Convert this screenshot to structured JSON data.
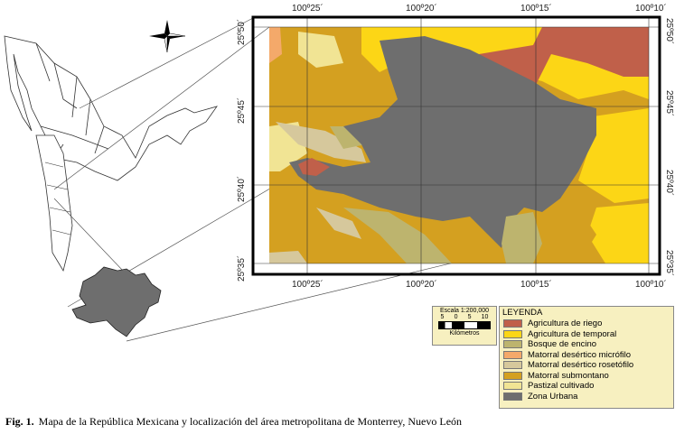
{
  "map": {
    "longitude_labels": [
      "100º25´",
      "100º20´",
      "100º15´",
      "100º10´"
    ],
    "latitude_labels": [
      "25º50´",
      "25º45´",
      "25º40´",
      "25º35´"
    ],
    "north_arrow": "compass-rose-icon"
  },
  "scale": {
    "title": "Escala 1:200,000",
    "ticks": [
      "5",
      "0",
      "5",
      "10"
    ],
    "unit": "Kilómetros"
  },
  "legend": {
    "title": "LEYENDA",
    "items": [
      {
        "label": "Agricultura de riego",
        "color": "#c0604a"
      },
      {
        "label": "Agricultura de temporal",
        "color": "#fcd616"
      },
      {
        "label": "Bosque de encino",
        "color": "#bdb46e"
      },
      {
        "label": "Matorral desértico micrófilo",
        "color": "#f4a96a"
      },
      {
        "label": "Matorral desértico rosetófilo",
        "color": "#d6c89c"
      },
      {
        "label": "Matorral submontano",
        "color": "#d4a020"
      },
      {
        "label": "Pastizal cultivado",
        "color": "#f1e494"
      },
      {
        "label": "Zona Urbana",
        "color": "#6e6e6e"
      }
    ]
  },
  "caption": {
    "number": "Fig. 1.",
    "text": "Mapa de la República Mexicana y localización del área metropolitana de Monterrey, Nuevo León"
  }
}
